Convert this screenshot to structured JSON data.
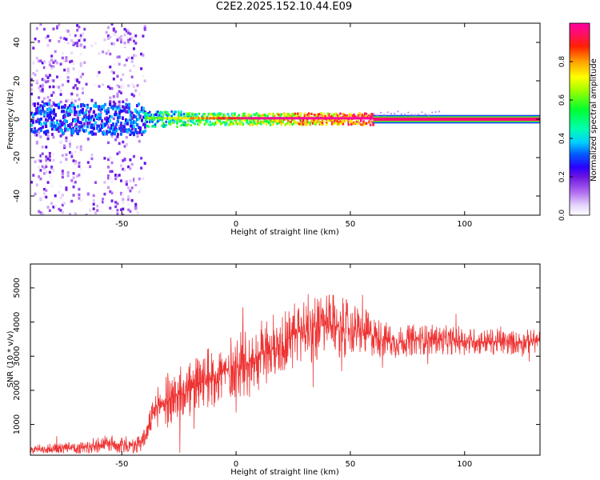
{
  "title": "C2E2.2025.152.10.44.E09",
  "chart_data": [
    {
      "type": "heatmap",
      "xlabel": "Height of straight line (km)",
      "ylabel": "Frequency (Hz)",
      "xlim": [
        -90,
        133
      ],
      "ylim": [
        -50,
        50
      ],
      "x_ticks": [
        -50,
        0,
        50,
        100
      ],
      "y_ticks": [
        -40,
        -20,
        0,
        20,
        40
      ],
      "colorbar": {
        "label": "Normalized spectral amplitude",
        "range": [
          0.0,
          1.0
        ],
        "ticks": [
          0.0,
          0.2,
          0.4,
          0.6,
          0.8
        ],
        "tick_labels": [
          "0.0",
          "0.2",
          "0.4",
          "0.6",
          "0.8"
        ]
      },
      "description_regions": [
        {
          "x_range": [
            -90,
            -40
          ],
          "spread_hz": 50,
          "amplitude": [
            0.0,
            0.2
          ]
        },
        {
          "x_range": [
            -40,
            60
          ],
          "spread_hz": 4,
          "amplitude": [
            0.3,
            1.0
          ]
        },
        {
          "x_range": [
            60,
            133
          ],
          "spread_hz": 1.5,
          "amplitude": [
            0.9,
            1.0
          ]
        }
      ],
      "colors": {
        "axis": "#000000",
        "grid": "none"
      }
    },
    {
      "type": "line",
      "xlabel": "Height of straight line (km)",
      "ylabel": "SNR (10 * v/v)",
      "xlim": [
        -90,
        133
      ],
      "ylim": [
        100,
        5700
      ],
      "x_ticks": [
        -50,
        0,
        50,
        100
      ],
      "y_ticks": [
        1000,
        2000,
        3000,
        4000,
        5000
      ],
      "series": [
        {
          "color": "#ee3333",
          "envelope": [
            {
              "x": -90,
              "y": 250
            },
            {
              "x": -70,
              "y": 300
            },
            {
              "x": -55,
              "y": 450
            },
            {
              "x": -45,
              "y": 350
            },
            {
              "x": -40,
              "y": 600
            },
            {
              "x": -35,
              "y": 1500
            },
            {
              "x": -25,
              "y": 1900
            },
            {
              "x": -20,
              "y": 2000
            },
            {
              "x": -10,
              "y": 2400
            },
            {
              "x": 0,
              "y": 2700
            },
            {
              "x": 10,
              "y": 3000
            },
            {
              "x": 20,
              "y": 3400
            },
            {
              "x": 30,
              "y": 3800
            },
            {
              "x": 40,
              "y": 3900
            },
            {
              "x": 50,
              "y": 3800
            },
            {
              "x": 60,
              "y": 3600
            },
            {
              "x": 70,
              "y": 3400
            },
            {
              "x": 80,
              "y": 3500
            },
            {
              "x": 100,
              "y": 3450
            },
            {
              "x": 120,
              "y": 3400
            },
            {
              "x": 133,
              "y": 3450
            }
          ],
          "noise_amplitude": [
            {
              "x": -90,
              "y": 120
            },
            {
              "x": -40,
              "y": 250
            },
            {
              "x": -30,
              "y": 700
            },
            {
              "x": 0,
              "y": 800
            },
            {
              "x": 30,
              "y": 900
            },
            {
              "x": 50,
              "y": 700
            },
            {
              "x": 70,
              "y": 400
            },
            {
              "x": 133,
              "y": 300
            }
          ]
        }
      ]
    }
  ]
}
